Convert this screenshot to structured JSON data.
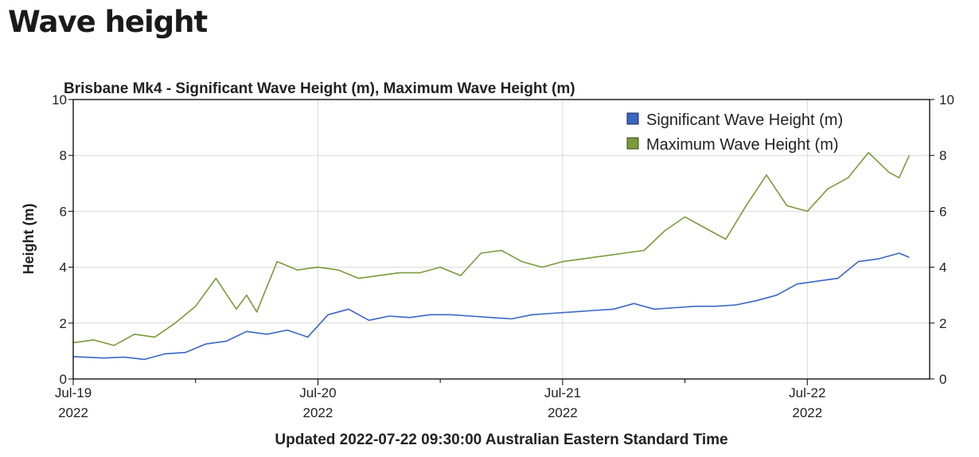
{
  "page": {
    "heading": "Wave height"
  },
  "chart_data": {
    "type": "line",
    "title": "Brisbane Mk4 - Significant Wave Height (m), Maximum Wave Height (m)",
    "ylabel": "Height (m)",
    "ylabel_right": "",
    "xlabel": "Updated 2022-07-22 09:30:00 Australian Eastern Standard Time",
    "ylim": [
      0,
      10
    ],
    "yticks": [
      "0",
      "2",
      "4",
      "6",
      "8",
      "10"
    ],
    "xlim": [
      "2022-07-19T00:00",
      "2022-07-22T12:00"
    ],
    "xticks": [
      {
        "date": "2022-07-19T00:00",
        "line1": "Jul-19",
        "line2": "2022"
      },
      {
        "date": "2022-07-20T00:00",
        "line1": "Jul-20",
        "line2": "2022"
      },
      {
        "date": "2022-07-21T00:00",
        "line1": "Jul-21",
        "line2": "2022"
      },
      {
        "date": "2022-07-22T00:00",
        "line1": "Jul-22",
        "line2": "2022"
      }
    ],
    "grid": true,
    "legend_position": "top-right",
    "series": [
      {
        "name": "Significant Wave Height (m)",
        "color": "#3a66c4",
        "x": [
          "2022-07-19T00:00",
          "2022-07-19T03:00",
          "2022-07-19T05:00",
          "2022-07-19T07:00",
          "2022-07-19T09:00",
          "2022-07-19T11:00",
          "2022-07-19T13:00",
          "2022-07-19T15:00",
          "2022-07-19T17:00",
          "2022-07-19T19:00",
          "2022-07-19T21:00",
          "2022-07-19T23:00",
          "2022-07-20T01:00",
          "2022-07-20T03:00",
          "2022-07-20T05:00",
          "2022-07-20T07:00",
          "2022-07-20T09:00",
          "2022-07-20T11:00",
          "2022-07-20T13:00",
          "2022-07-20T15:00",
          "2022-07-20T17:00",
          "2022-07-20T19:00",
          "2022-07-20T21:00",
          "2022-07-20T23:00",
          "2022-07-21T01:00",
          "2022-07-21T03:00",
          "2022-07-21T05:00",
          "2022-07-21T07:00",
          "2022-07-21T09:00",
          "2022-07-21T11:00",
          "2022-07-21T13:00",
          "2022-07-21T15:00",
          "2022-07-21T17:00",
          "2022-07-21T19:00",
          "2022-07-21T21:00",
          "2022-07-21T23:00",
          "2022-07-22T01:00",
          "2022-07-22T03:00",
          "2022-07-22T05:00",
          "2022-07-22T07:00",
          "2022-07-22T09:00",
          "2022-07-22T10:00"
        ],
        "values": [
          0.8,
          0.75,
          0.78,
          0.7,
          0.9,
          0.95,
          1.25,
          1.35,
          1.7,
          1.6,
          1.75,
          1.5,
          2.3,
          2.5,
          2.1,
          2.25,
          2.2,
          2.3,
          2.3,
          2.25,
          2.2,
          2.15,
          2.3,
          2.35,
          2.4,
          2.45,
          2.5,
          2.7,
          2.5,
          2.55,
          2.6,
          2.6,
          2.65,
          2.8,
          3.0,
          3.4,
          3.5,
          3.6,
          4.2,
          4.3,
          4.5,
          4.35
        ]
      },
      {
        "name": "Maximum Wave Height (m)",
        "color": "#7a9a3a",
        "x": [
          "2022-07-19T00:00",
          "2022-07-19T02:00",
          "2022-07-19T04:00",
          "2022-07-19T06:00",
          "2022-07-19T08:00",
          "2022-07-19T10:00",
          "2022-07-19T12:00",
          "2022-07-19T14:00",
          "2022-07-19T16:00",
          "2022-07-19T17:00",
          "2022-07-19T18:00",
          "2022-07-19T20:00",
          "2022-07-19T22:00",
          "2022-07-20T00:00",
          "2022-07-20T02:00",
          "2022-07-20T04:00",
          "2022-07-20T06:00",
          "2022-07-20T08:00",
          "2022-07-20T10:00",
          "2022-07-20T12:00",
          "2022-07-20T14:00",
          "2022-07-20T16:00",
          "2022-07-20T18:00",
          "2022-07-20T20:00",
          "2022-07-20T22:00",
          "2022-07-21T00:00",
          "2022-07-21T02:00",
          "2022-07-21T04:00",
          "2022-07-21T06:00",
          "2022-07-21T08:00",
          "2022-07-21T10:00",
          "2022-07-21T12:00",
          "2022-07-21T14:00",
          "2022-07-21T16:00",
          "2022-07-21T18:00",
          "2022-07-21T20:00",
          "2022-07-21T22:00",
          "2022-07-22T00:00",
          "2022-07-22T02:00",
          "2022-07-22T04:00",
          "2022-07-22T06:00",
          "2022-07-22T08:00",
          "2022-07-22T09:00",
          "2022-07-22T10:00"
        ],
        "values": [
          1.3,
          1.4,
          1.2,
          1.6,
          1.5,
          2.0,
          2.6,
          3.6,
          2.5,
          3.0,
          2.4,
          4.2,
          3.9,
          4.0,
          3.9,
          3.6,
          3.7,
          3.8,
          3.8,
          4.0,
          3.7,
          4.5,
          4.6,
          4.2,
          4.0,
          4.2,
          4.3,
          4.4,
          4.5,
          4.6,
          5.3,
          5.8,
          5.4,
          5.0,
          6.2,
          7.3,
          6.2,
          6.0,
          6.8,
          7.2,
          8.1,
          7.4,
          7.2,
          8.0
        ]
      }
    ]
  }
}
